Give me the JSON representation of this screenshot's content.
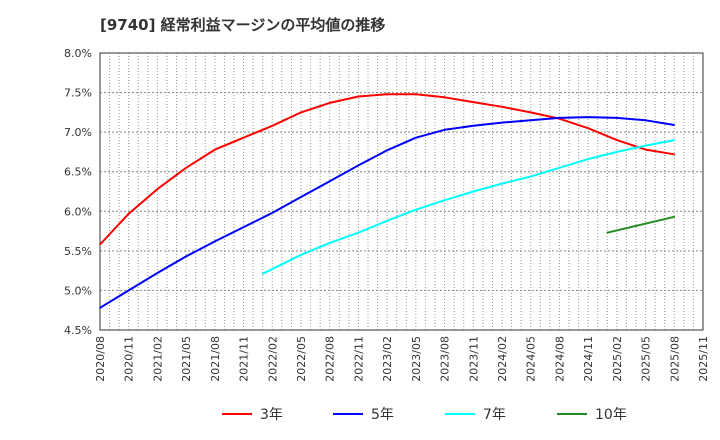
{
  "chart_data": {
    "type": "line",
    "title": "[9740]  経常利益マージンの平均値の推移",
    "xlabel": "",
    "ylabel": "",
    "ylim": [
      4.5,
      8.0
    ],
    "yticks": [
      "4.5%",
      "5.0%",
      "5.5%",
      "6.0%",
      "6.5%",
      "7.0%",
      "7.5%",
      "8.0%"
    ],
    "ytick_values": [
      4.5,
      5.0,
      5.5,
      6.0,
      6.5,
      7.0,
      7.5,
      8.0
    ],
    "xticks": [
      "2020/08",
      "2020/11",
      "2021/02",
      "2021/05",
      "2021/08",
      "2021/11",
      "2022/02",
      "2022/05",
      "2022/08",
      "2022/11",
      "2023/02",
      "2023/05",
      "2023/08",
      "2023/11",
      "2024/02",
      "2024/05",
      "2024/08",
      "2024/11",
      "2025/02",
      "2025/05",
      "2025/08",
      "2025/11"
    ],
    "grid": true,
    "legend_position": "bottom",
    "series": [
      {
        "name": "3年",
        "color": "#ff0000",
        "x": [
          "2020/08",
          "2020/11",
          "2021/02",
          "2021/05",
          "2021/08",
          "2021/11",
          "2022/02",
          "2022/05",
          "2022/08",
          "2022/11",
          "2023/02",
          "2023/05",
          "2023/08",
          "2023/11",
          "2024/02",
          "2024/05",
          "2024/08",
          "2024/11",
          "2025/02",
          "2025/05",
          "2025/08"
        ],
        "values": [
          5.58,
          5.97,
          6.28,
          6.55,
          6.78,
          6.93,
          7.08,
          7.25,
          7.37,
          7.45,
          7.48,
          7.48,
          7.44,
          7.38,
          7.32,
          7.25,
          7.17,
          7.05,
          6.9,
          6.78,
          6.72
        ]
      },
      {
        "name": "5年",
        "color": "#0000ff",
        "x": [
          "2020/08",
          "2020/11",
          "2021/02",
          "2021/05",
          "2021/08",
          "2021/11",
          "2022/02",
          "2022/05",
          "2022/08",
          "2022/11",
          "2023/02",
          "2023/05",
          "2023/08",
          "2023/11",
          "2024/02",
          "2024/05",
          "2024/08",
          "2024/11",
          "2025/02",
          "2025/05",
          "2025/08"
        ],
        "values": [
          4.78,
          5.0,
          5.22,
          5.43,
          5.62,
          5.8,
          5.98,
          6.18,
          6.38,
          6.58,
          6.77,
          6.93,
          7.03,
          7.08,
          7.12,
          7.15,
          7.18,
          7.19,
          7.18,
          7.15,
          7.09
        ]
      },
      {
        "name": "7年",
        "color": "#00ffff",
        "x": [
          "2022/01",
          "2022/05",
          "2022/08",
          "2022/11",
          "2023/02",
          "2023/05",
          "2023/08",
          "2023/11",
          "2024/02",
          "2024/05",
          "2024/08",
          "2024/11",
          "2025/02",
          "2025/05",
          "2025/08"
        ],
        "values": [
          5.21,
          5.45,
          5.6,
          5.73,
          5.88,
          6.02,
          6.14,
          6.25,
          6.35,
          6.44,
          6.55,
          6.66,
          6.75,
          6.83,
          6.9
        ]
      },
      {
        "name": "10年",
        "color": "#228b22",
        "x": [
          "2025/01",
          "2025/08"
        ],
        "values": [
          5.73,
          5.93
        ]
      }
    ]
  }
}
